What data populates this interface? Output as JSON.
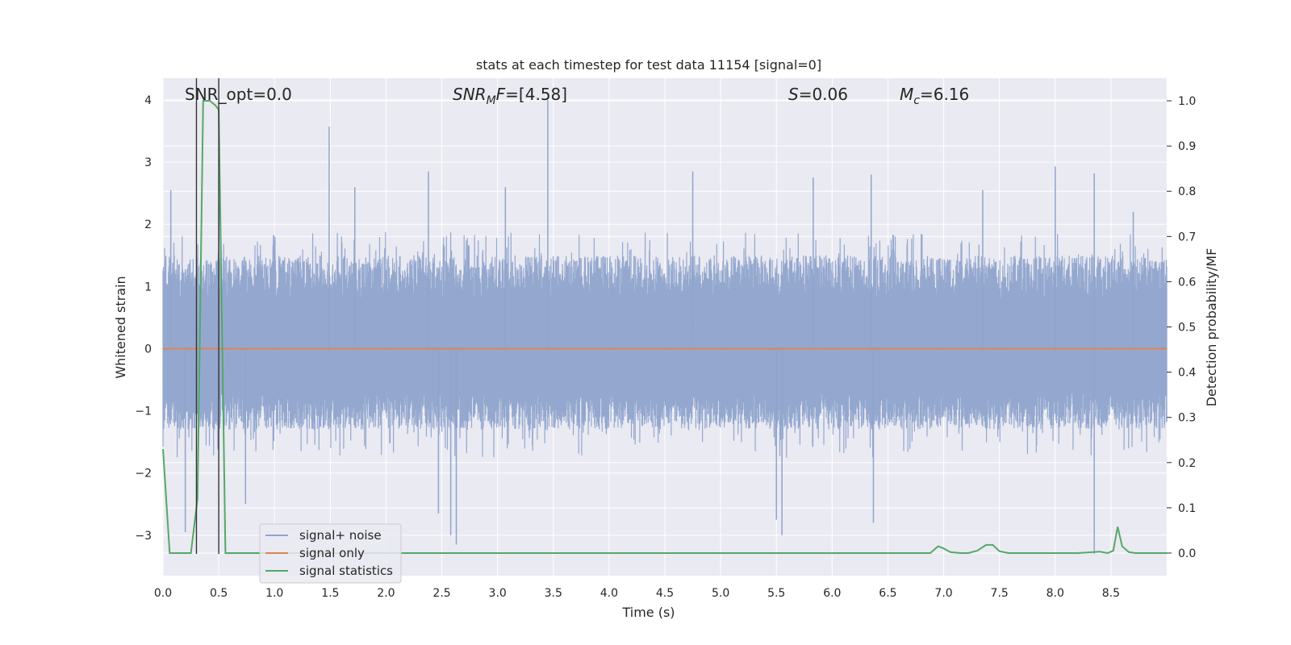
{
  "chart_data": {
    "type": "line",
    "title": "stats at each timestep for test data 11154 [signal=0]",
    "xlabel": "Time (s)",
    "ylabel": "Whitened strain",
    "y2label": "Detection probability/MF",
    "xlim": [
      0.0,
      9.0
    ],
    "ylim": [
      -3.65,
      4.35
    ],
    "y2lim": [
      -0.05,
      1.05
    ],
    "xticks": [
      "0.0",
      "0.5",
      "1.0",
      "1.5",
      "2.0",
      "2.5",
      "3.0",
      "3.5",
      "4.0",
      "4.5",
      "5.0",
      "5.5",
      "6.0",
      "6.5",
      "7.0",
      "7.5",
      "8.0",
      "8.5"
    ],
    "xtick_values": [
      0.0,
      0.5,
      1.0,
      1.5,
      2.0,
      2.5,
      3.0,
      3.5,
      4.0,
      4.5,
      5.0,
      5.5,
      6.0,
      6.5,
      7.0,
      7.5,
      8.0,
      8.5
    ],
    "yticks": [
      "−3",
      "−2",
      "−1",
      "0",
      "1",
      "2",
      "3",
      "4"
    ],
    "ytick_values": [
      -3,
      -2,
      -1,
      0,
      1,
      2,
      3,
      4
    ],
    "y2ticks": [
      "0.0",
      "0.1",
      "0.2",
      "0.3",
      "0.4",
      "0.5",
      "0.6",
      "0.7",
      "0.8",
      "0.9",
      "1.0"
    ],
    "y2tick_values": [
      0.0,
      0.1,
      0.2,
      0.3,
      0.4,
      0.5,
      0.6,
      0.7,
      0.8,
      0.9,
      1.0
    ],
    "grid": true,
    "legend_position": "lower-left",
    "annotations": {
      "snr_opt": "SNR_opt=0.0",
      "snr_mf_base": "SNR",
      "snr_mf_sub": "M",
      "snr_mf_tail": "F",
      "snr_mf_value": "=[4.58]",
      "s_label": "S",
      "s_value": "=0.06",
      "mc_base": "M",
      "mc_sub": "c",
      "mc_value": "=6.16"
    },
    "vlines": [
      0.3,
      0.5
    ],
    "series": [
      {
        "name": "signal+ noise",
        "color": "#8fa4cc",
        "kind": "noise",
        "envelope_typical": [
          -1.3,
          1.5
        ],
        "peaks": [
          {
            "x": 0.07,
            "y": 2.55
          },
          {
            "x": 0.2,
            "y": -2.95
          },
          {
            "x": 0.5,
            "y": 2.35
          },
          {
            "x": 0.74,
            "y": -2.5
          },
          {
            "x": 1.49,
            "y": 3.57
          },
          {
            "x": 1.72,
            "y": 2.6
          },
          {
            "x": 2.38,
            "y": 2.85
          },
          {
            "x": 2.47,
            "y": -2.65
          },
          {
            "x": 2.58,
            "y": -3.0
          },
          {
            "x": 2.63,
            "y": -3.15
          },
          {
            "x": 3.07,
            "y": 2.6
          },
          {
            "x": 3.45,
            "y": 4.0
          },
          {
            "x": 4.75,
            "y": 2.85
          },
          {
            "x": 5.5,
            "y": -2.75
          },
          {
            "x": 5.55,
            "y": -3.0
          },
          {
            "x": 5.83,
            "y": 2.75
          },
          {
            "x": 6.37,
            "y": -2.8
          },
          {
            "x": 6.35,
            "y": 2.8
          },
          {
            "x": 7.35,
            "y": 2.55
          },
          {
            "x": 8.0,
            "y": 2.93
          },
          {
            "x": 8.35,
            "y": 2.82
          },
          {
            "x": 8.35,
            "y": -3.3
          },
          {
            "x": 8.7,
            "y": 2.2
          }
        ]
      },
      {
        "name": "signal only",
        "color": "#dd8452",
        "x": [
          0.0,
          9.0
        ],
        "y": [
          0.0,
          0.0
        ]
      },
      {
        "name": "signal statistics",
        "color": "#55a868",
        "axis": "right",
        "x": [
          0.0,
          0.06,
          0.12,
          0.18,
          0.25,
          0.31,
          0.36,
          0.42,
          0.47,
          0.5,
          0.56,
          0.6,
          1.0,
          6.6,
          6.88,
          6.95,
          7.0,
          7.06,
          7.15,
          7.22,
          7.3,
          7.38,
          7.44,
          7.5,
          7.58,
          7.7,
          8.2,
          8.4,
          8.47,
          8.52,
          8.56,
          8.6,
          8.66,
          8.72,
          9.0
        ],
        "y": [
          0.23,
          0.0,
          0.0,
          0.0,
          0.0,
          0.12,
          1.0,
          1.0,
          0.99,
          0.98,
          0.0,
          0.0,
          0.0,
          0.0,
          0.0,
          0.015,
          0.01,
          0.002,
          0.0,
          0.0,
          0.005,
          0.018,
          0.018,
          0.004,
          0.0,
          0.0,
          0.0,
          0.003,
          0.0,
          0.005,
          0.058,
          0.015,
          0.002,
          0.0,
          0.0
        ]
      }
    ]
  }
}
